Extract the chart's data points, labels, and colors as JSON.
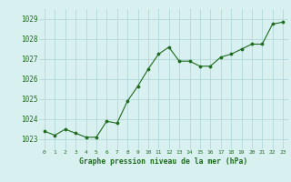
{
  "x": [
    0,
    1,
    2,
    3,
    4,
    5,
    6,
    7,
    8,
    9,
    10,
    11,
    12,
    13,
    14,
    15,
    16,
    17,
    18,
    19,
    20,
    21,
    22,
    23
  ],
  "y": [
    1023.4,
    1023.2,
    1023.5,
    1023.3,
    1023.1,
    1023.1,
    1023.9,
    1023.8,
    1024.9,
    1025.65,
    1026.5,
    1027.25,
    1027.6,
    1026.9,
    1026.9,
    1026.65,
    1026.65,
    1027.1,
    1027.25,
    1027.5,
    1027.75,
    1027.75,
    1028.75,
    1028.85
  ],
  "line_color": "#1e6b1e",
  "marker_color": "#1e6b1e",
  "bg_color": "#d9f0f0",
  "grid_color": "#aad4d4",
  "xlabel": "Graphe pression niveau de la mer (hPa)",
  "xlabel_color": "#1e6b1e",
  "tick_color": "#1e6b1e",
  "ylim": [
    1022.5,
    1029.5
  ],
  "yticks": [
    1023,
    1024,
    1025,
    1026,
    1027,
    1028,
    1029
  ],
  "xticks": [
    0,
    1,
    2,
    3,
    4,
    5,
    6,
    7,
    8,
    9,
    10,
    11,
    12,
    13,
    14,
    15,
    16,
    17,
    18,
    19,
    20,
    21,
    22,
    23
  ],
  "figsize": [
    3.2,
    2.0
  ],
  "dpi": 100
}
